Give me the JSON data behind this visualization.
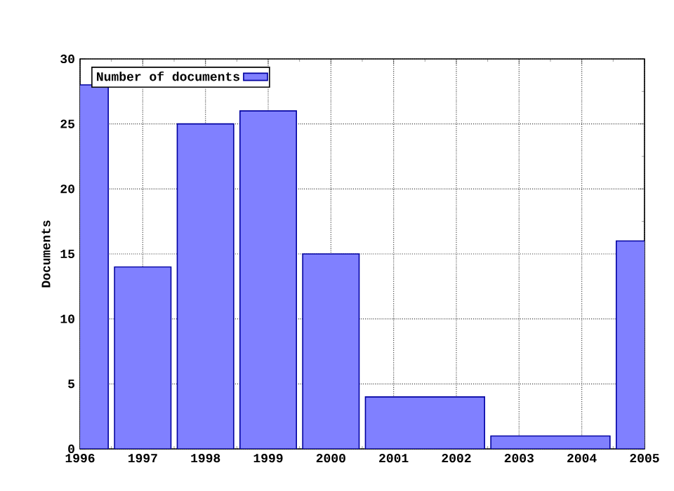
{
  "chart_data": {
    "type": "histogram",
    "ylabel": "Documents",
    "bins": [
      1995.5,
      1996.5,
      1997.5,
      1998.5,
      1999.5,
      2000.5,
      2002.5,
      2004.5,
      2005.5
    ],
    "series": [
      {
        "name": "Number of documents",
        "color": "#8080ff",
        "values": [
          28,
          14,
          25,
          26,
          15,
          4,
          1,
          16
        ]
      }
    ],
    "xlim": [
      1996,
      2005
    ],
    "xticks": [
      1996,
      1997,
      1998,
      1999,
      2000,
      2001,
      2002,
      2003,
      2004,
      2005
    ],
    "ylim": [
      0,
      30
    ],
    "yticks": [
      0,
      5,
      10,
      15,
      20,
      25,
      30
    ],
    "grid": true,
    "legend": "top left",
    "marker": "none"
  }
}
